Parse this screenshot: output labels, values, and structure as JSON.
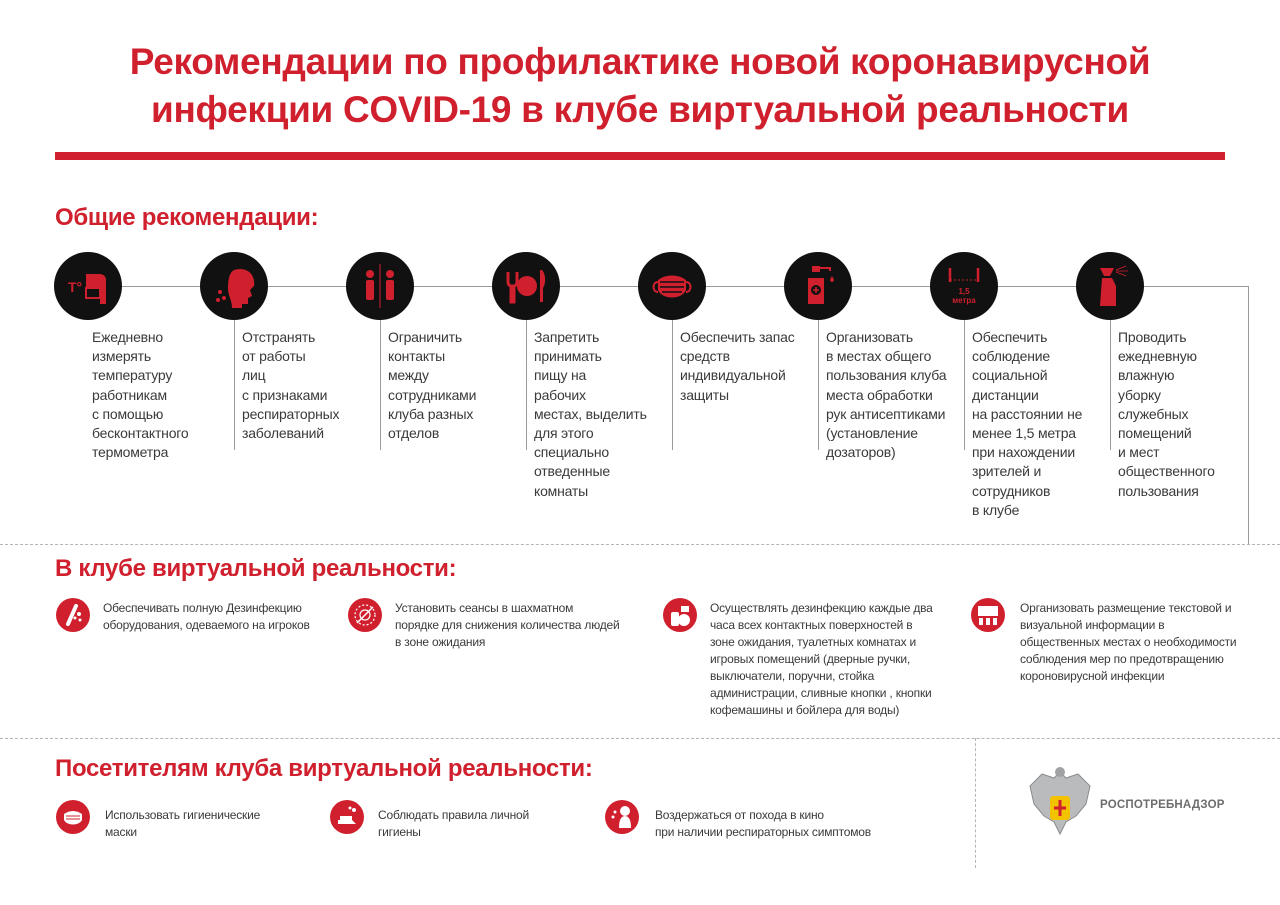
{
  "title": {
    "line1": "Рекомендации по профилактике новой коронавирусной",
    "line2": "инфекции COVID-19 в клубе виртуальной реальности"
  },
  "colors": {
    "accent": "#d0202e",
    "icon_bg": "#111111",
    "text": "#3a3a3a"
  },
  "general": {
    "heading": "Общие рекомендации:",
    "items": [
      {
        "icon": "thermometer-icon",
        "text": "Ежедневно\nизмерять\nтемпературу\nработникам\nс помощью\nбесконтактного\nтермометра"
      },
      {
        "icon": "sneezing-person-icon",
        "text": "Отстранять\nот работы\nлиц\nс признаками\nреспираторных\nзаболеваний"
      },
      {
        "icon": "separated-people-icon",
        "text": "Ограничить\nконтакты\nмежду\nсотрудниками\nклуба разных\nотделов"
      },
      {
        "icon": "cutlery-plate-icon",
        "text": "Запретить\nпринимать\nпищу на\nрабочих\nместах, выделить\nдля этого\nспециально\nотведенные\nкомнаты"
      },
      {
        "icon": "face-mask-icon",
        "text": "Обеспечить запас\nсредств\nиндивидуальной\nзащиты"
      },
      {
        "icon": "sanitizer-dispenser-icon",
        "text": "Организовать\nв местах общего\nпользования клуба\nместа обработки\nрук антисептиками\n(установление\nдозаторов)"
      },
      {
        "icon": "distance-icon",
        "icon_label": "1,5\nметра",
        "text": "Обеспечить\nсоблюдение\nсоциальной\nдистанции\nна расстоянии не\nменее 1,5 метра\nпри нахождении\nзрителей и\nсотрудников\nв клубе"
      },
      {
        "icon": "spray-bottle-icon",
        "text": "Проводить\nежедневную\nвлажную\nуборку\nслужебных\nпомещений\nи мест\nобщественного\nпользования"
      }
    ]
  },
  "club": {
    "heading": "В клубе виртуальной реальности:",
    "items": [
      {
        "icon": "disinfection-icon",
        "text": "Обеспечивать полную Дезинфекцию\nоборудования, одеваемого на игроков"
      },
      {
        "icon": "no-virus-icon",
        "text": "Установить сеансы в шахматном\nпорядке для снижения количества людей\nв зоне ожидания"
      },
      {
        "icon": "cleaning-supplies-icon",
        "text": "Осуществлять дезинфекцию каждые два\nчаса всех контактных поверхностей в\nзоне ожидания, туалетных комнатах и\nигровых помещений (дверные ручки,\nвыключатели, поручни, стойка\nадминистрации, сливные кнопки , кнопки\nкофемашины и бойлера для воды)"
      },
      {
        "icon": "presentation-board-icon",
        "text": " Организовать размещение текстовой и\nвизуальной информации в\nобщественных местах о необходимости\nсоблюдения мер по предотвращению\nкороновирусной инфекции"
      }
    ]
  },
  "visitors": {
    "heading": "Посетителям клуба виртуальной реальности:",
    "items": [
      {
        "icon": "mask-icon",
        "text": "Использовать гигиенические\nмаски"
      },
      {
        "icon": "hand-washing-icon",
        "text": "Соблюдать правила личной\nгигиены"
      },
      {
        "icon": "sick-person-icon",
        "text": "Воздержаться от похода в кино\nпри наличии респираторных симптомов"
      }
    ]
  },
  "logo": {
    "text": "РОСПОТРЕБНАДЗОР",
    "icon": "coat-of-arms-icon"
  }
}
